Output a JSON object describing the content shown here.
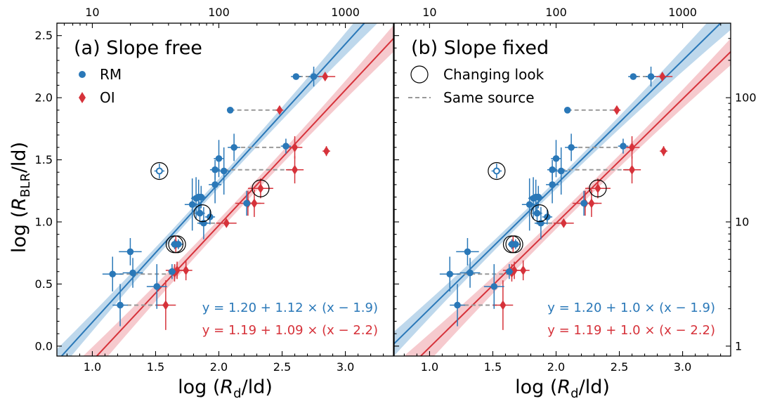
{
  "colors": {
    "rm": "#2a78b8",
    "oi": "#d6323a",
    "rm_band": "#a8cbe6",
    "oi_band": "#f3b8bd",
    "same": "#999999"
  },
  "chart_data": {
    "type": "scatter",
    "xlabel_prefix": "log (",
    "xlabel_var": "R",
    "xlabel_sub": "d",
    "xlabel_suffix": "/ld)",
    "ylabel_prefix": "log (",
    "ylabel_var": "R",
    "ylabel_sub": "BLR",
    "ylabel_suffix": "/ld)",
    "xlim": [
      0.72,
      3.38
    ],
    "ylim": [
      -0.08,
      2.6
    ],
    "x_ticks": [
      1.0,
      1.5,
      2.0,
      2.5,
      3.0
    ],
    "x_tick_labels": [
      "1.0",
      "1.5",
      "2.0",
      "2.5",
      "3.0"
    ],
    "y_ticks": [
      0.0,
      0.5,
      1.0,
      1.5,
      2.0,
      2.5
    ],
    "y_tick_labels": [
      "0.0",
      "0.5",
      "1.0",
      "1.5",
      "2.0",
      "2.5"
    ],
    "top_ticks": [
      10,
      100,
      1000
    ],
    "top_tick_labels": [
      "10",
      "100",
      "1000"
    ],
    "right_ticks": [
      1,
      10,
      100
    ],
    "right_tick_labels": [
      "1",
      "10",
      "100"
    ],
    "legend": {
      "rm": "RM",
      "oi": "OI",
      "changing_look": "Changing look",
      "same_source": "Same source"
    },
    "panels": [
      {
        "title": "(a) Slope free",
        "eq_rm": "y = 1.20 + 1.12 × (x − 1.9)",
        "eq_oi": "y = 1.19 + 1.09 × (x − 2.2)",
        "fit_rm": {
          "a": 1.2,
          "b": 1.12,
          "x0": 1.9
        },
        "fit_oi": {
          "a": 1.19,
          "b": 1.09,
          "x0": 2.2
        }
      },
      {
        "title": "(b) Slope fixed",
        "eq_rm": "y = 1.20 + 1.0 × (x − 1.9)",
        "eq_oi": "y = 1.19 + 1.0 × (x − 2.2)",
        "fit_rm": {
          "a": 1.2,
          "b": 1.0,
          "x0": 1.9
        },
        "fit_oi": {
          "a": 1.19,
          "b": 1.0,
          "x0": 2.2
        }
      }
    ],
    "rm_points": [
      {
        "x": 1.16,
        "y": 0.58,
        "xe": 0.08,
        "ye": 0.14
      },
      {
        "x": 1.3,
        "y": 0.76,
        "xe": 0.09,
        "ye": 0.11
      },
      {
        "x": 1.32,
        "y": 0.59,
        "xe": 0.08,
        "ye": 0.12
      },
      {
        "x": 1.22,
        "y": 0.33,
        "xe": 0.06,
        "ye": 0.17
      },
      {
        "x": 1.53,
        "y": 1.41,
        "xe": 0.04,
        "ye": 0.06,
        "open": true
      },
      {
        "x": 1.51,
        "y": 0.48,
        "xe": 0.08,
        "ye": 0.18
      },
      {
        "x": 1.63,
        "y": 0.6,
        "xe": 0.03,
        "ye": 0.06
      },
      {
        "x": 1.65,
        "y": 0.82,
        "xe": 0.03,
        "ye": 0.04
      },
      {
        "x": 1.68,
        "y": 0.82,
        "xe": 0.04,
        "ye": 0.04
      },
      {
        "x": 1.79,
        "y": 1.14,
        "xe": 0.06,
        "ye": 0.21
      },
      {
        "x": 1.82,
        "y": 1.19,
        "xe": 0.04,
        "ye": 0.17
      },
      {
        "x": 1.84,
        "y": 1.2,
        "xe": 0.05,
        "ye": 0.14
      },
      {
        "x": 1.86,
        "y": 1.2,
        "xe": 0.04,
        "ye": 0.09
      },
      {
        "x": 1.85,
        "y": 1.07,
        "xe": 0.04,
        "ye": 0.09
      },
      {
        "x": 1.88,
        "y": 0.99,
        "xe": 0.05,
        "ye": 0.13
      },
      {
        "x": 1.93,
        "y": 1.04,
        "xe": 0.04,
        "ye": 0.06
      },
      {
        "x": 1.97,
        "y": 1.3,
        "xe": 0.05,
        "ye": 0.15
      },
      {
        "x": 1.97,
        "y": 1.42,
        "xe": 0.04,
        "ye": 0.08
      },
      {
        "x": 2.0,
        "y": 1.51,
        "xe": 0.04,
        "ye": 0.15
      },
      {
        "x": 2.04,
        "y": 1.41,
        "xe": 0.05,
        "ye": 0.19
      },
      {
        "x": 2.12,
        "y": 1.6,
        "xe": 0.05,
        "ye": 0.11
      },
      {
        "x": 2.09,
        "y": 1.9,
        "xe": 0.02,
        "ye": 0.02
      },
      {
        "x": 2.22,
        "y": 1.15,
        "xe": 0.03,
        "ye": 0.1
      },
      {
        "x": 2.53,
        "y": 1.61,
        "xe": 0.04,
        "ye": 0.06
      },
      {
        "x": 2.61,
        "y": 2.17,
        "xe": 0.04,
        "ye": 0.02
      },
      {
        "x": 2.75,
        "y": 2.17,
        "xe": 0.04,
        "ye": 0.08
      }
    ],
    "oi_points": [
      {
        "x": 1.58,
        "y": 0.33,
        "xe": 0.08,
        "ye": 0.2
      },
      {
        "x": 1.65,
        "y": 0.59,
        "xe": 0.03,
        "ye": 0.07
      },
      {
        "x": 1.66,
        "y": 0.82,
        "xe": 0.03,
        "ye": 0.07
      },
      {
        "x": 1.67,
        "y": 0.61,
        "xe": 0.09,
        "ye": 0.07
      },
      {
        "x": 1.74,
        "y": 0.61,
        "xe": 0.05,
        "ye": 0.08
      },
      {
        "x": 2.06,
        "y": 0.99,
        "xe": 0.08,
        "ye": 0.03
      },
      {
        "x": 2.23,
        "y": 1.15,
        "xe": 0.1,
        "ye": 0.1
      },
      {
        "x": 2.28,
        "y": 1.15,
        "xe": 0.08,
        "ye": 0.11
      },
      {
        "x": 2.33,
        "y": 1.27,
        "xe": 0.1,
        "ye": 0.08
      },
      {
        "x": 2.48,
        "y": 1.9,
        "xe": 0.03,
        "ye": 0.03
      },
      {
        "x": 2.6,
        "y": 1.42,
        "xe": 0.07,
        "ye": 0.11
      },
      {
        "x": 2.6,
        "y": 1.6,
        "xe": 0.06,
        "ye": 0.09
      },
      {
        "x": 2.85,
        "y": 1.57,
        "xe": 0.03,
        "ye": 0.04
      },
      {
        "x": 2.84,
        "y": 2.17,
        "xe": 0.08,
        "ye": 0.03
      }
    ],
    "changing_look": [
      {
        "x": 1.53,
        "y": 1.41
      },
      {
        "x": 1.65,
        "y": 0.82
      },
      {
        "x": 1.67,
        "y": 0.82
      },
      {
        "x": 1.87,
        "y": 1.07
      },
      {
        "x": 2.33,
        "y": 1.27
      }
    ],
    "same_source_links": [
      {
        "x1": 2.09,
        "x2": 2.48,
        "y": 1.9
      },
      {
        "x1": 2.63,
        "x2": 2.8,
        "y": 2.17
      },
      {
        "x1": 2.12,
        "x2": 2.58,
        "y": 1.6
      },
      {
        "x1": 2.04,
        "x2": 2.58,
        "y": 1.42
      },
      {
        "x1": 1.16,
        "x2": 1.65,
        "y": 0.58
      },
      {
        "x1": 1.22,
        "x2": 1.58,
        "y": 0.33
      },
      {
        "x1": 1.88,
        "x2": 2.06,
        "y": 0.99
      }
    ]
  }
}
